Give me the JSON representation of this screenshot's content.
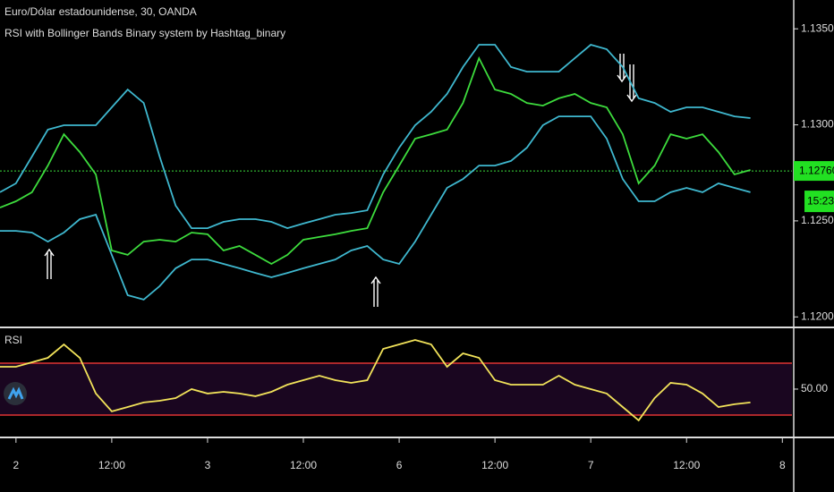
{
  "header": {
    "title": "Euro/Dólar estadounidense, 30, OANDA",
    "subtitle": "RSI with Bollinger Bands Binary system by Hashtag_binary"
  },
  "chart_data": [
    {
      "type": "line",
      "x": [
        -2,
        0,
        2,
        4,
        6,
        8,
        10,
        12,
        14,
        16,
        18,
        20,
        22,
        24,
        26,
        28,
        30,
        32,
        34,
        36,
        38,
        40,
        42,
        44,
        46,
        48,
        50,
        52,
        54,
        56,
        58,
        60,
        62,
        64,
        66,
        68,
        70,
        72,
        74,
        76,
        78,
        80,
        82,
        84,
        86,
        88,
        90,
        92
      ],
      "series": [
        {
          "name": "Price",
          "color": "#3ddc3d",
          "values": [
            1.12569,
            1.12602,
            1.12649,
            1.12788,
            1.12951,
            1.12858,
            1.12742,
            1.12346,
            1.12323,
            1.12392,
            1.12402,
            1.12392,
            1.12439,
            1.1243,
            1.12346,
            1.12369,
            1.12323,
            1.12276,
            1.12323,
            1.12402,
            1.12416,
            1.1243,
            1.12448,
            1.12462,
            1.12649,
            1.12788,
            1.12928,
            1.12951,
            1.12975,
            1.13114,
            1.13347,
            1.13184,
            1.13161,
            1.13114,
            1.131,
            1.13138,
            1.13161,
            1.13114,
            1.13091,
            1.12951,
            1.12695,
            1.12788,
            1.12951,
            1.12928,
            1.12951,
            1.12858,
            1.12742,
            1.12765
          ]
        },
        {
          "name": "Upper band",
          "color": "#3fb8cf",
          "values": [
            1.12649,
            1.12695,
            1.12835,
            1.12975,
            1.12998,
            1.12998,
            1.12998,
            1.13091,
            1.13184,
            1.13114,
            1.12835,
            1.12579,
            1.12462,
            1.12462,
            1.12495,
            1.12509,
            1.12509,
            1.12495,
            1.12462,
            1.12486,
            1.12509,
            1.12532,
            1.12541,
            1.12555,
            1.12742,
            1.12881,
            1.12998,
            1.13068,
            1.13161,
            1.13301,
            1.13417,
            1.13417,
            1.13301,
            1.13277,
            1.13277,
            1.13277,
            1.13347,
            1.13417,
            1.13394,
            1.13301,
            1.13138,
            1.13114,
            1.13068,
            1.13091,
            1.13091,
            1.13068,
            1.13044,
            1.13035
          ]
        },
        {
          "name": "Lower band",
          "color": "#3fb8cf",
          "values": [
            1.12448,
            1.12448,
            1.12439,
            1.12392,
            1.12439,
            1.12509,
            1.12532,
            1.12323,
            1.12113,
            1.1209,
            1.1216,
            1.12253,
            1.12299,
            1.12299,
            1.12276,
            1.12253,
            1.12229,
            1.12206,
            1.12229,
            1.12253,
            1.12276,
            1.12299,
            1.12346,
            1.12369,
            1.12299,
            1.12276,
            1.12392,
            1.12532,
            1.12672,
            1.12718,
            1.12788,
            1.12788,
            1.12812,
            1.12881,
            1.12998,
            1.13044,
            1.13044,
            1.13044,
            1.12928,
            1.12718,
            1.12602,
            1.12602,
            1.12649,
            1.12672,
            1.12649,
            1.12695,
            1.12672,
            1.12649
          ]
        }
      ],
      "xlim": [
        -2,
        97.2
      ],
      "xticks": [
        {
          "value": 0,
          "label": "2"
        },
        {
          "value": 12,
          "label": "12:00"
        },
        {
          "value": 24,
          "label": "3"
        },
        {
          "value": 36,
          "label": "12:00"
        },
        {
          "value": 48,
          "label": "6"
        },
        {
          "value": 60,
          "label": "12:00"
        },
        {
          "value": 72,
          "label": "7"
        },
        {
          "value": 84,
          "label": "12:00"
        },
        {
          "value": 96,
          "label": "8"
        }
      ],
      "ylim": [
        1.1195,
        1.1365
      ],
      "yticks": [
        {
          "value": 1.135,
          "label": "1.13500"
        },
        {
          "value": 1.13,
          "label": "1.13000"
        },
        {
          "value": 1.125,
          "label": "1.12500"
        },
        {
          "value": 1.12,
          "label": "1.12000"
        }
      ],
      "current_price": {
        "value": 1.1276,
        "label": "1.12760"
      },
      "countdown": "15:23"
    },
    {
      "type": "line",
      "title": "RSI",
      "x": [
        -2,
        0,
        2,
        4,
        6,
        8,
        10,
        12,
        14,
        16,
        18,
        20,
        22,
        24,
        26,
        28,
        30,
        32,
        34,
        36,
        38,
        40,
        42,
        44,
        46,
        48,
        50,
        52,
        54,
        56,
        58,
        60,
        62,
        64,
        66,
        68,
        70,
        72,
        74,
        76,
        78,
        80,
        82,
        84,
        86,
        88,
        90,
        92
      ],
      "series": [
        {
          "name": "RSI",
          "color": "#f2e35a",
          "values": [
            67.2,
            67.2,
            70.7,
            74.1,
            84.5,
            74.1,
            46.6,
            32.8,
            36.2,
            39.7,
            41.0,
            43.1,
            50,
            46.6,
            47.9,
            46.6,
            44.5,
            47.9,
            53.4,
            56.9,
            60.3,
            56.9,
            54.8,
            56.9,
            81.0,
            84.5,
            87.9,
            84.5,
            67.2,
            77.6,
            74.1,
            56.9,
            53.4,
            53.4,
            53.4,
            60.3,
            53.4,
            50,
            46.6,
            36.2,
            25.9,
            43.1,
            54.8,
            53.4,
            46.6,
            36.2,
            38.3,
            39.7
          ]
        }
      ],
      "xlim": [
        -2,
        97.2
      ],
      "ylim": [
        13.4,
        96.9
      ],
      "yticks": [
        {
          "value": 50,
          "label": "50.00"
        }
      ],
      "levels": [
        30,
        70
      ],
      "level_color": "#e03333"
    }
  ]
}
